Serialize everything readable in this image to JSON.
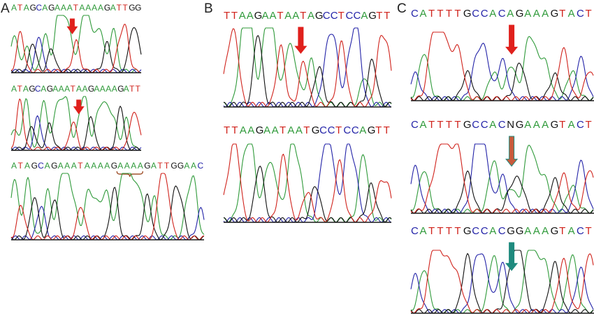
{
  "panels": [
    {
      "letter": "A",
      "tracks": [
        {
          "sequence": "ATAGCAGAAATAAAAGATTGG",
          "arrow": "red",
          "arrow_at": 0.47,
          "bracket": null
        },
        {
          "sequence": "ATAGCAGAAATAAGAAAAGATT",
          "arrow": "red",
          "arrow_at": 0.52,
          "bracket": null
        },
        {
          "sequence": "ATAGCAGAAATAAAAGAAAAGATTGGAAC",
          "arrow": null,
          "arrow_at": null,
          "bracket": "AAAA"
        }
      ]
    },
    {
      "letter": "B",
      "tracks": [
        {
          "sequence": "TTAAGAATAATAGCCTCCAGTT",
          "arrow": "red",
          "arrow_at": 0.46,
          "bracket": null
        },
        {
          "sequence": "TTAAGAATAATGCCTCCAGTT",
          "arrow": null,
          "arrow_at": null,
          "bracket": null
        }
      ]
    },
    {
      "letter": "C",
      "tracks": [
        {
          "sequence": "CATTTTGCCACAGAAAGTACT",
          "arrow": "red",
          "arrow_at": 0.55,
          "bracket": null
        },
        {
          "sequence": "CATTTTGCCACNGAAAGTACT",
          "arrow": "red-teal",
          "arrow_at": 0.55,
          "bracket": null
        },
        {
          "sequence": "CATTTTGCCACGGAAAGTACT",
          "arrow": "teal",
          "arrow_at": 0.55,
          "bracket": null
        }
      ]
    }
  ],
  "base_colors": {
    "A": "#2f9a3a",
    "C": "#2323a8",
    "G": "#111111",
    "T": "#d0231c",
    "N": "#111111"
  },
  "arrow_colors": {
    "red": "#e0201c",
    "teal": "#1f8a7e",
    "red-teal-fill": "#c85a3c",
    "red-teal-outline": "#1f8a7e"
  }
}
